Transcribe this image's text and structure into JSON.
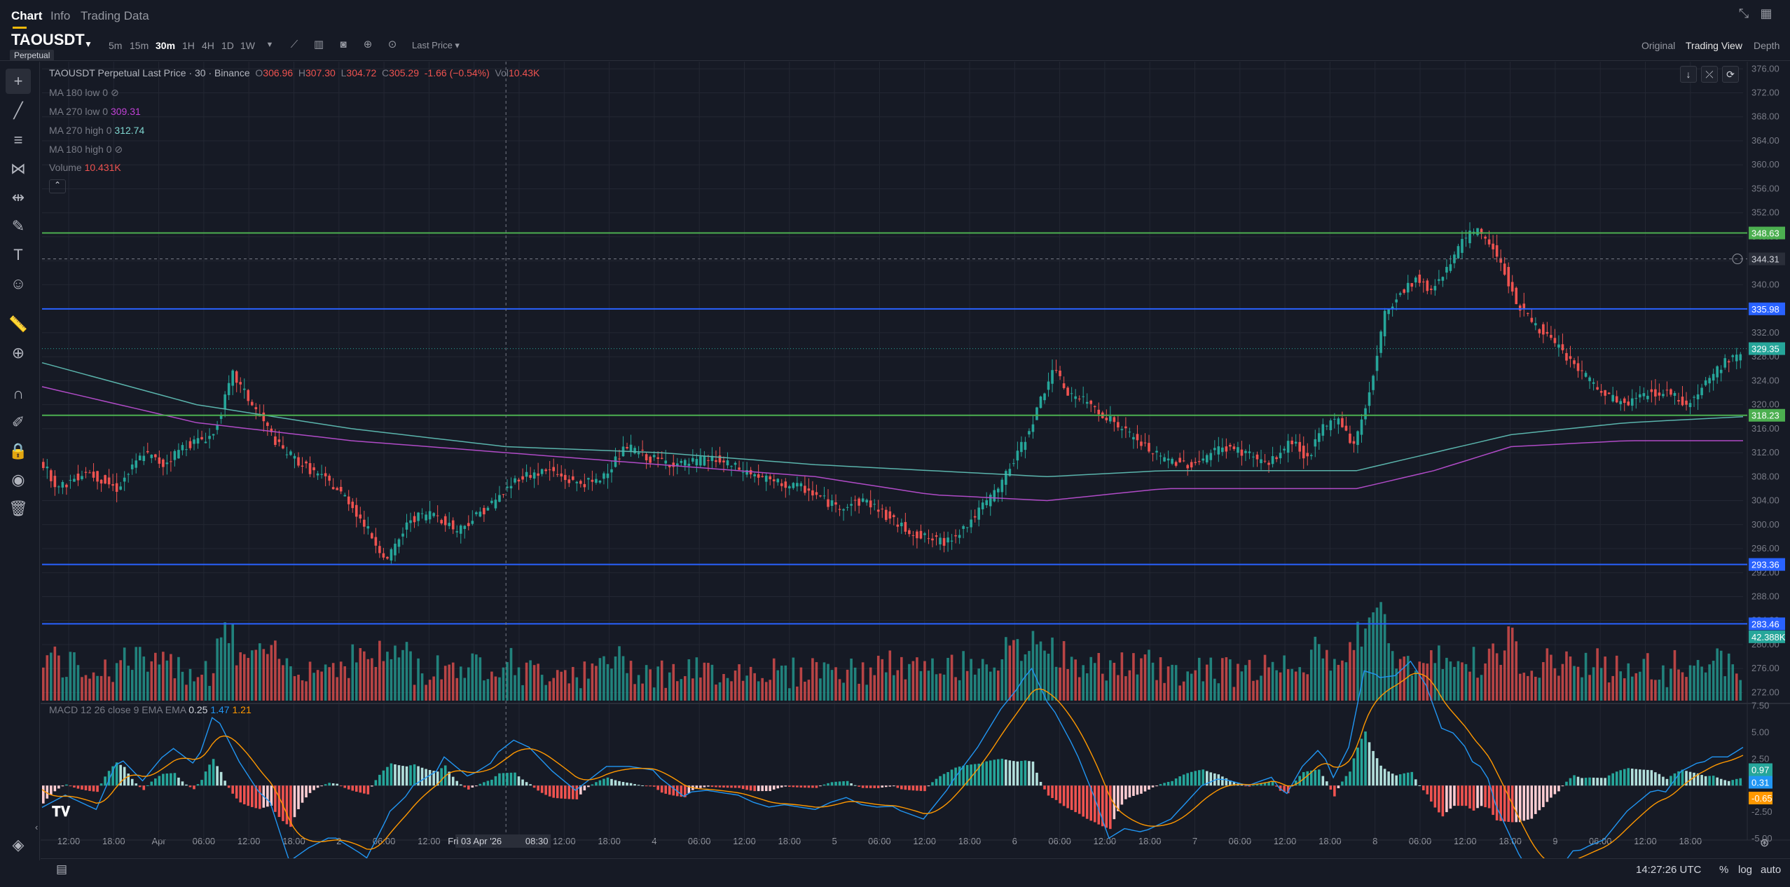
{
  "tabs": [
    "Chart",
    "Info",
    "Trading Data"
  ],
  "active_tab": "Chart",
  "symbol": "TAOUSDT",
  "contract_badge": "Perpetual",
  "timeframes": [
    "5m",
    "15m",
    "30m",
    "1H",
    "4H",
    "1D",
    "1W"
  ],
  "active_timeframe": "30m",
  "price_source": "Last Price",
  "views": [
    "Original",
    "Trading View",
    "Depth"
  ],
  "active_view": "Trading View",
  "legend": {
    "title": "TAOUSDT Perpetual Last Price · 30 · Binance",
    "o_label": "O",
    "o": "306.96",
    "h_label": "H",
    "h": "307.30",
    "l_label": "L",
    "l": "304.72",
    "c_label": "C",
    "c": "305.29",
    "change": "-1.66 (−0.54%)",
    "vol_label": "Vol",
    "vol": "10.43K",
    "ma180_low": "MA 180 low 0",
    "ma270_low": "MA 270 low 0",
    "ma270_low_val": "309.31",
    "ma270_high": "MA 270 high 0",
    "ma270_high_val": "312.74",
    "ma180_high": "MA 180 high 0",
    "volume_label": "Volume",
    "volume_val": "10.431K",
    "macd_label": "MACD 12 26 close 9 EMA EMA",
    "macd_hist": "0.25",
    "macd_line": "1.47",
    "macd_signal": "1.21"
  },
  "horizontal_lines": [
    {
      "price": 348.63,
      "label": "348.63",
      "color": "#4caf50"
    },
    {
      "price": 335.98,
      "label": "335.98",
      "color": "#2962ff"
    },
    {
      "price": 318.23,
      "label": "318.23",
      "color": "#4caf50"
    },
    {
      "price": 293.36,
      "label": "293.36",
      "color": "#2962ff"
    },
    {
      "price": 283.46,
      "label": "283.46",
      "color": "#2962ff"
    }
  ],
  "crosshair_price": "344.31",
  "current_price": "329.35",
  "volume_tag": "42.388K",
  "macd_tags": {
    "hist": "0.97",
    "macd": "0.31",
    "signal": "-0.65"
  },
  "colors": {
    "up": "#26a69a",
    "down": "#ef5350",
    "ma_teal": "#5ab4ac",
    "ma_purple": "#b04bc7",
    "macd_line": "#2196f3",
    "signal_line": "#ff9800"
  },
  "chart_data": {
    "type": "candlestick",
    "title": "TAOUSDT Perpetual Last Price · 30 · Binance",
    "y_ticks": [
      "376.00",
      "372.00",
      "368.00",
      "364.00",
      "360.00",
      "356.00",
      "352.00",
      "348.00",
      "344.00",
      "340.00",
      "336.00",
      "332.00",
      "328.00",
      "324.00",
      "320.00",
      "316.00",
      "312.00",
      "308.00",
      "304.00",
      "300.00",
      "296.00",
      "292.00",
      "288.00",
      "284.00",
      "280.00",
      "276.00",
      "272.00"
    ],
    "ylim": [
      270.3,
      377.2
    ],
    "macd_ticks": [
      "7.50",
      "5.00",
      "2.50",
      "-2.50",
      "-5.00"
    ],
    "macd_ylim": [
      -5.0,
      7.6
    ],
    "x_ticks": [
      "12:00",
      "18:00",
      "Apr",
      "06:00",
      "12:00",
      "18:00",
      "2",
      "06:00",
      "12:00",
      "18:00",
      "3",
      "12:00",
      "18:00",
      "4",
      "06:00",
      "12:00",
      "18:00",
      "5",
      "06:00",
      "12:00",
      "18:00",
      "6",
      "06:00",
      "12:00",
      "18:00",
      "7",
      "06:00",
      "12:00",
      "18:00",
      "8",
      "06:00",
      "12:00",
      "18:00",
      "9",
      "06:00",
      "12:00",
      "18:00"
    ],
    "crosshair_time": "Fri 03 Apr '26",
    "crosshair_clock": "08:30",
    "price_path": [
      [
        0,
        311
      ],
      [
        5,
        306
      ],
      [
        12,
        309
      ],
      [
        20,
        306
      ],
      [
        27,
        312
      ],
      [
        32,
        310
      ],
      [
        37,
        313
      ],
      [
        45,
        315
      ],
      [
        50,
        325
      ],
      [
        53,
        322
      ],
      [
        57,
        318
      ],
      [
        62,
        313
      ],
      [
        68,
        310
      ],
      [
        75,
        307
      ],
      [
        80,
        304
      ],
      [
        86,
        298
      ],
      [
        90,
        294
      ],
      [
        96,
        301
      ],
      [
        102,
        302
      ],
      [
        108,
        299
      ],
      [
        114,
        302
      ],
      [
        118,
        304
      ],
      [
        124,
        308
      ],
      [
        132,
        309
      ],
      [
        138,
        307
      ],
      [
        144,
        307
      ],
      [
        152,
        313
      ],
      [
        158,
        311
      ],
      [
        166,
        310
      ],
      [
        174,
        311
      ],
      [
        182,
        309
      ],
      [
        190,
        307
      ],
      [
        198,
        306
      ],
      [
        206,
        303
      ],
      [
        214,
        304
      ],
      [
        222,
        300
      ],
      [
        228,
        298
      ],
      [
        234,
        297
      ],
      [
        240,
        300
      ],
      [
        248,
        306
      ],
      [
        254,
        313
      ],
      [
        258,
        319
      ],
      [
        262,
        326
      ],
      [
        266,
        322
      ],
      [
        272,
        320
      ],
      [
        278,
        317
      ],
      [
        284,
        314
      ],
      [
        290,
        311
      ],
      [
        298,
        310
      ],
      [
        306,
        313
      ],
      [
        312,
        312
      ],
      [
        318,
        310
      ],
      [
        324,
        314
      ],
      [
        328,
        311
      ],
      [
        332,
        316
      ],
      [
        336,
        318
      ],
      [
        340,
        313
      ],
      [
        344,
        322
      ],
      [
        348,
        335
      ],
      [
        351,
        338
      ],
      [
        356,
        341
      ],
      [
        360,
        339
      ],
      [
        364,
        343
      ],
      [
        368,
        347
      ],
      [
        371,
        349
      ],
      [
        374,
        348
      ],
      [
        378,
        344
      ],
      [
        382,
        337
      ],
      [
        386,
        334
      ],
      [
        392,
        330
      ],
      [
        398,
        326
      ],
      [
        404,
        322
      ],
      [
        410,
        320
      ],
      [
        416,
        322
      ],
      [
        422,
        322
      ],
      [
        426,
        320
      ],
      [
        430,
        323
      ],
      [
        434,
        326
      ],
      [
        438,
        328
      ]
    ],
    "ma_teal_path": [
      [
        0,
        327
      ],
      [
        40,
        320
      ],
      [
        80,
        316
      ],
      [
        120,
        313
      ],
      [
        160,
        312
      ],
      [
        200,
        310
      ],
      [
        230,
        309
      ],
      [
        260,
        308
      ],
      [
        290,
        309
      ],
      [
        320,
        309
      ],
      [
        340,
        309
      ],
      [
        360,
        312
      ],
      [
        380,
        315
      ],
      [
        410,
        317
      ],
      [
        440,
        318
      ]
    ],
    "ma_purple_path": [
      [
        0,
        323
      ],
      [
        40,
        317
      ],
      [
        80,
        314
      ],
      [
        120,
        312
      ],
      [
        160,
        310
      ],
      [
        200,
        308
      ],
      [
        230,
        305
      ],
      [
        260,
        304
      ],
      [
        290,
        306
      ],
      [
        320,
        306
      ],
      [
        340,
        306
      ],
      [
        360,
        309
      ],
      [
        380,
        313
      ],
      [
        410,
        314
      ],
      [
        440,
        314
      ]
    ]
  },
  "bottom": {
    "time": "14:27:26 UTC",
    "percent": "%",
    "log": "log",
    "auto": "auto"
  }
}
